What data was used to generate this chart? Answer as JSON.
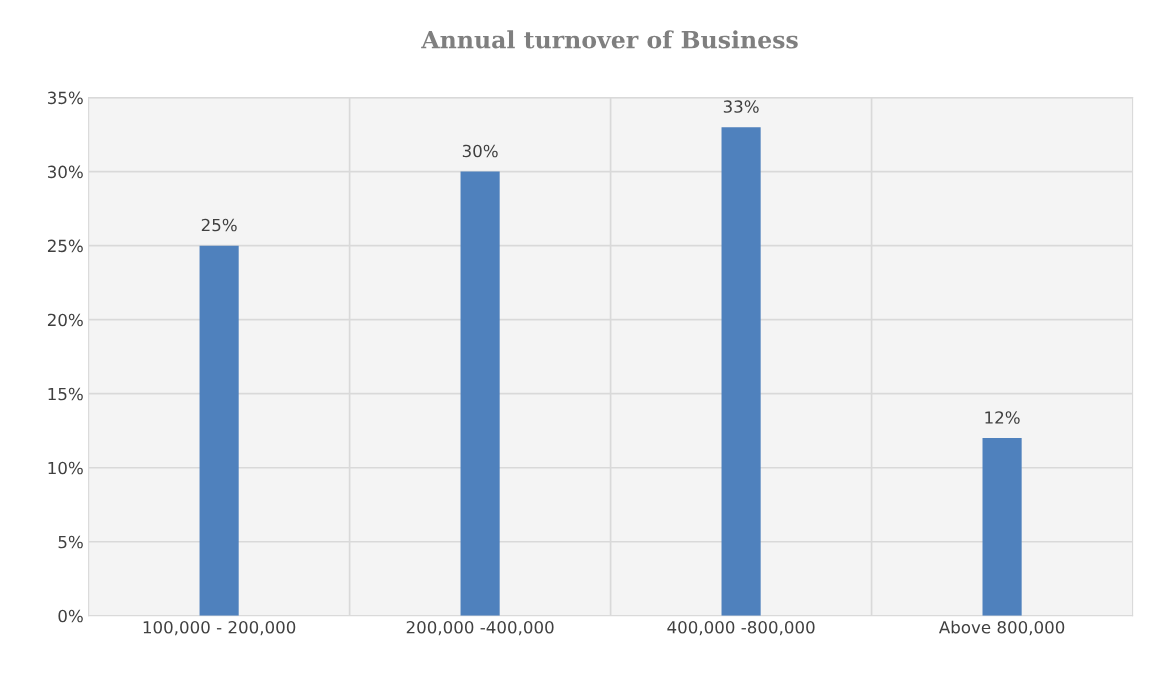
{
  "chart_data": {
    "type": "bar",
    "title": "Annual turnover of Business",
    "categories": [
      "100,000 - 200,000",
      "200,000 -400,000",
      "400,000 -800,000",
      "Above 800,000"
    ],
    "values": [
      25,
      30,
      33,
      12
    ],
    "value_labels": [
      "25%",
      "30%",
      "33%",
      "12%"
    ],
    "color": "#4f81bd",
    "ylim": [
      0,
      35
    ],
    "yticks": [
      {
        "value": 0,
        "label": "0%"
      },
      {
        "value": 5,
        "label": "5%"
      },
      {
        "value": 10,
        "label": "10%"
      },
      {
        "value": 15,
        "label": "15%"
      },
      {
        "value": 20,
        "label": "20%"
      },
      {
        "value": 25,
        "label": "25%"
      },
      {
        "value": 30,
        "label": "30%"
      },
      {
        "value": 35,
        "label": "35%"
      }
    ],
    "grid": true
  }
}
